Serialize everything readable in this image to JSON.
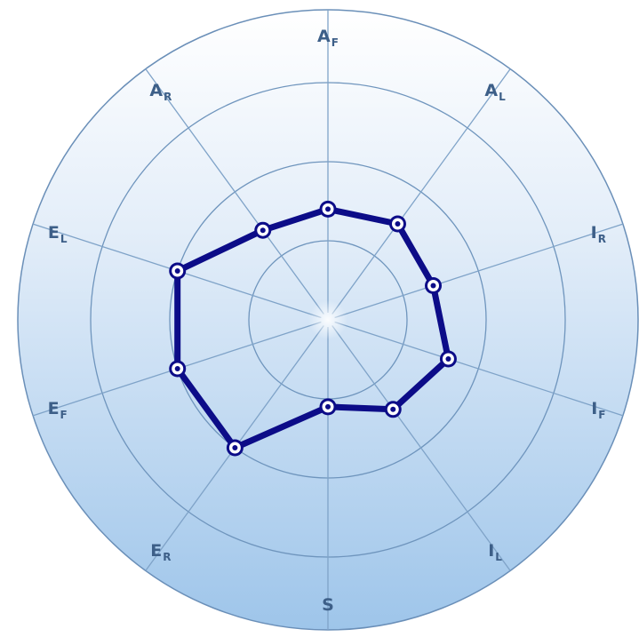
{
  "chart_data": {
    "type": "radar",
    "title": "",
    "axes": [
      {
        "label": "A",
        "sub": "F"
      },
      {
        "label": "A",
        "sub": "L"
      },
      {
        "label": "I",
        "sub": "R"
      },
      {
        "label": "I",
        "sub": "F"
      },
      {
        "label": "I",
        "sub": "L"
      },
      {
        "label": "S",
        "sub": ""
      },
      {
        "label": "E",
        "sub": "R"
      },
      {
        "label": "E",
        "sub": "F"
      },
      {
        "label": "E",
        "sub": "L"
      },
      {
        "label": "A",
        "sub": "R"
      }
    ],
    "range": [
      0,
      4
    ],
    "rings": [
      1,
      2,
      3,
      4
    ],
    "values": [
      1.4,
      1.5,
      1.4,
      1.6,
      1.4,
      1.1,
      2.0,
      2.0,
      2.0,
      1.4
    ],
    "grid": true,
    "legend": "none",
    "colors": {
      "series": "#0c0c88",
      "grid": "#6f95bd",
      "label": "#3d5f88",
      "disc_top": "#ffffff",
      "disc_bottom": "#9ec5ea"
    }
  }
}
